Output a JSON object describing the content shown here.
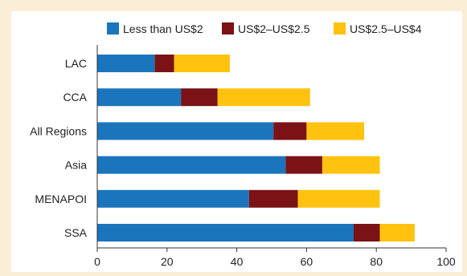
{
  "chart_data": {
    "type": "bar",
    "orientation": "horizontal",
    "stacked": true,
    "title": "",
    "xlabel": "",
    "ylabel": "",
    "categories": [
      "LAC",
      "CCA",
      "All Regions",
      "Asia",
      "MENAPOI",
      "SSA"
    ],
    "series": [
      {
        "name": "Less than US$2",
        "color": "#1b75bc",
        "values": [
          16.5,
          24,
          50.5,
          54,
          43.5,
          73.5
        ]
      },
      {
        "name": "US$2–US$2.5",
        "color": "#7a1216",
        "values": [
          5.5,
          10.5,
          9.5,
          10.5,
          14,
          7.5
        ]
      },
      {
        "name": "US$2.5–US$4",
        "color": "#ffc20e",
        "values": [
          16,
          26.5,
          16.5,
          16.5,
          23.5,
          10
        ]
      }
    ],
    "xlim": [
      0,
      100
    ],
    "xticks": [
      0,
      20,
      40,
      60,
      80,
      100
    ],
    "grid": false,
    "legend_position": "top"
  }
}
